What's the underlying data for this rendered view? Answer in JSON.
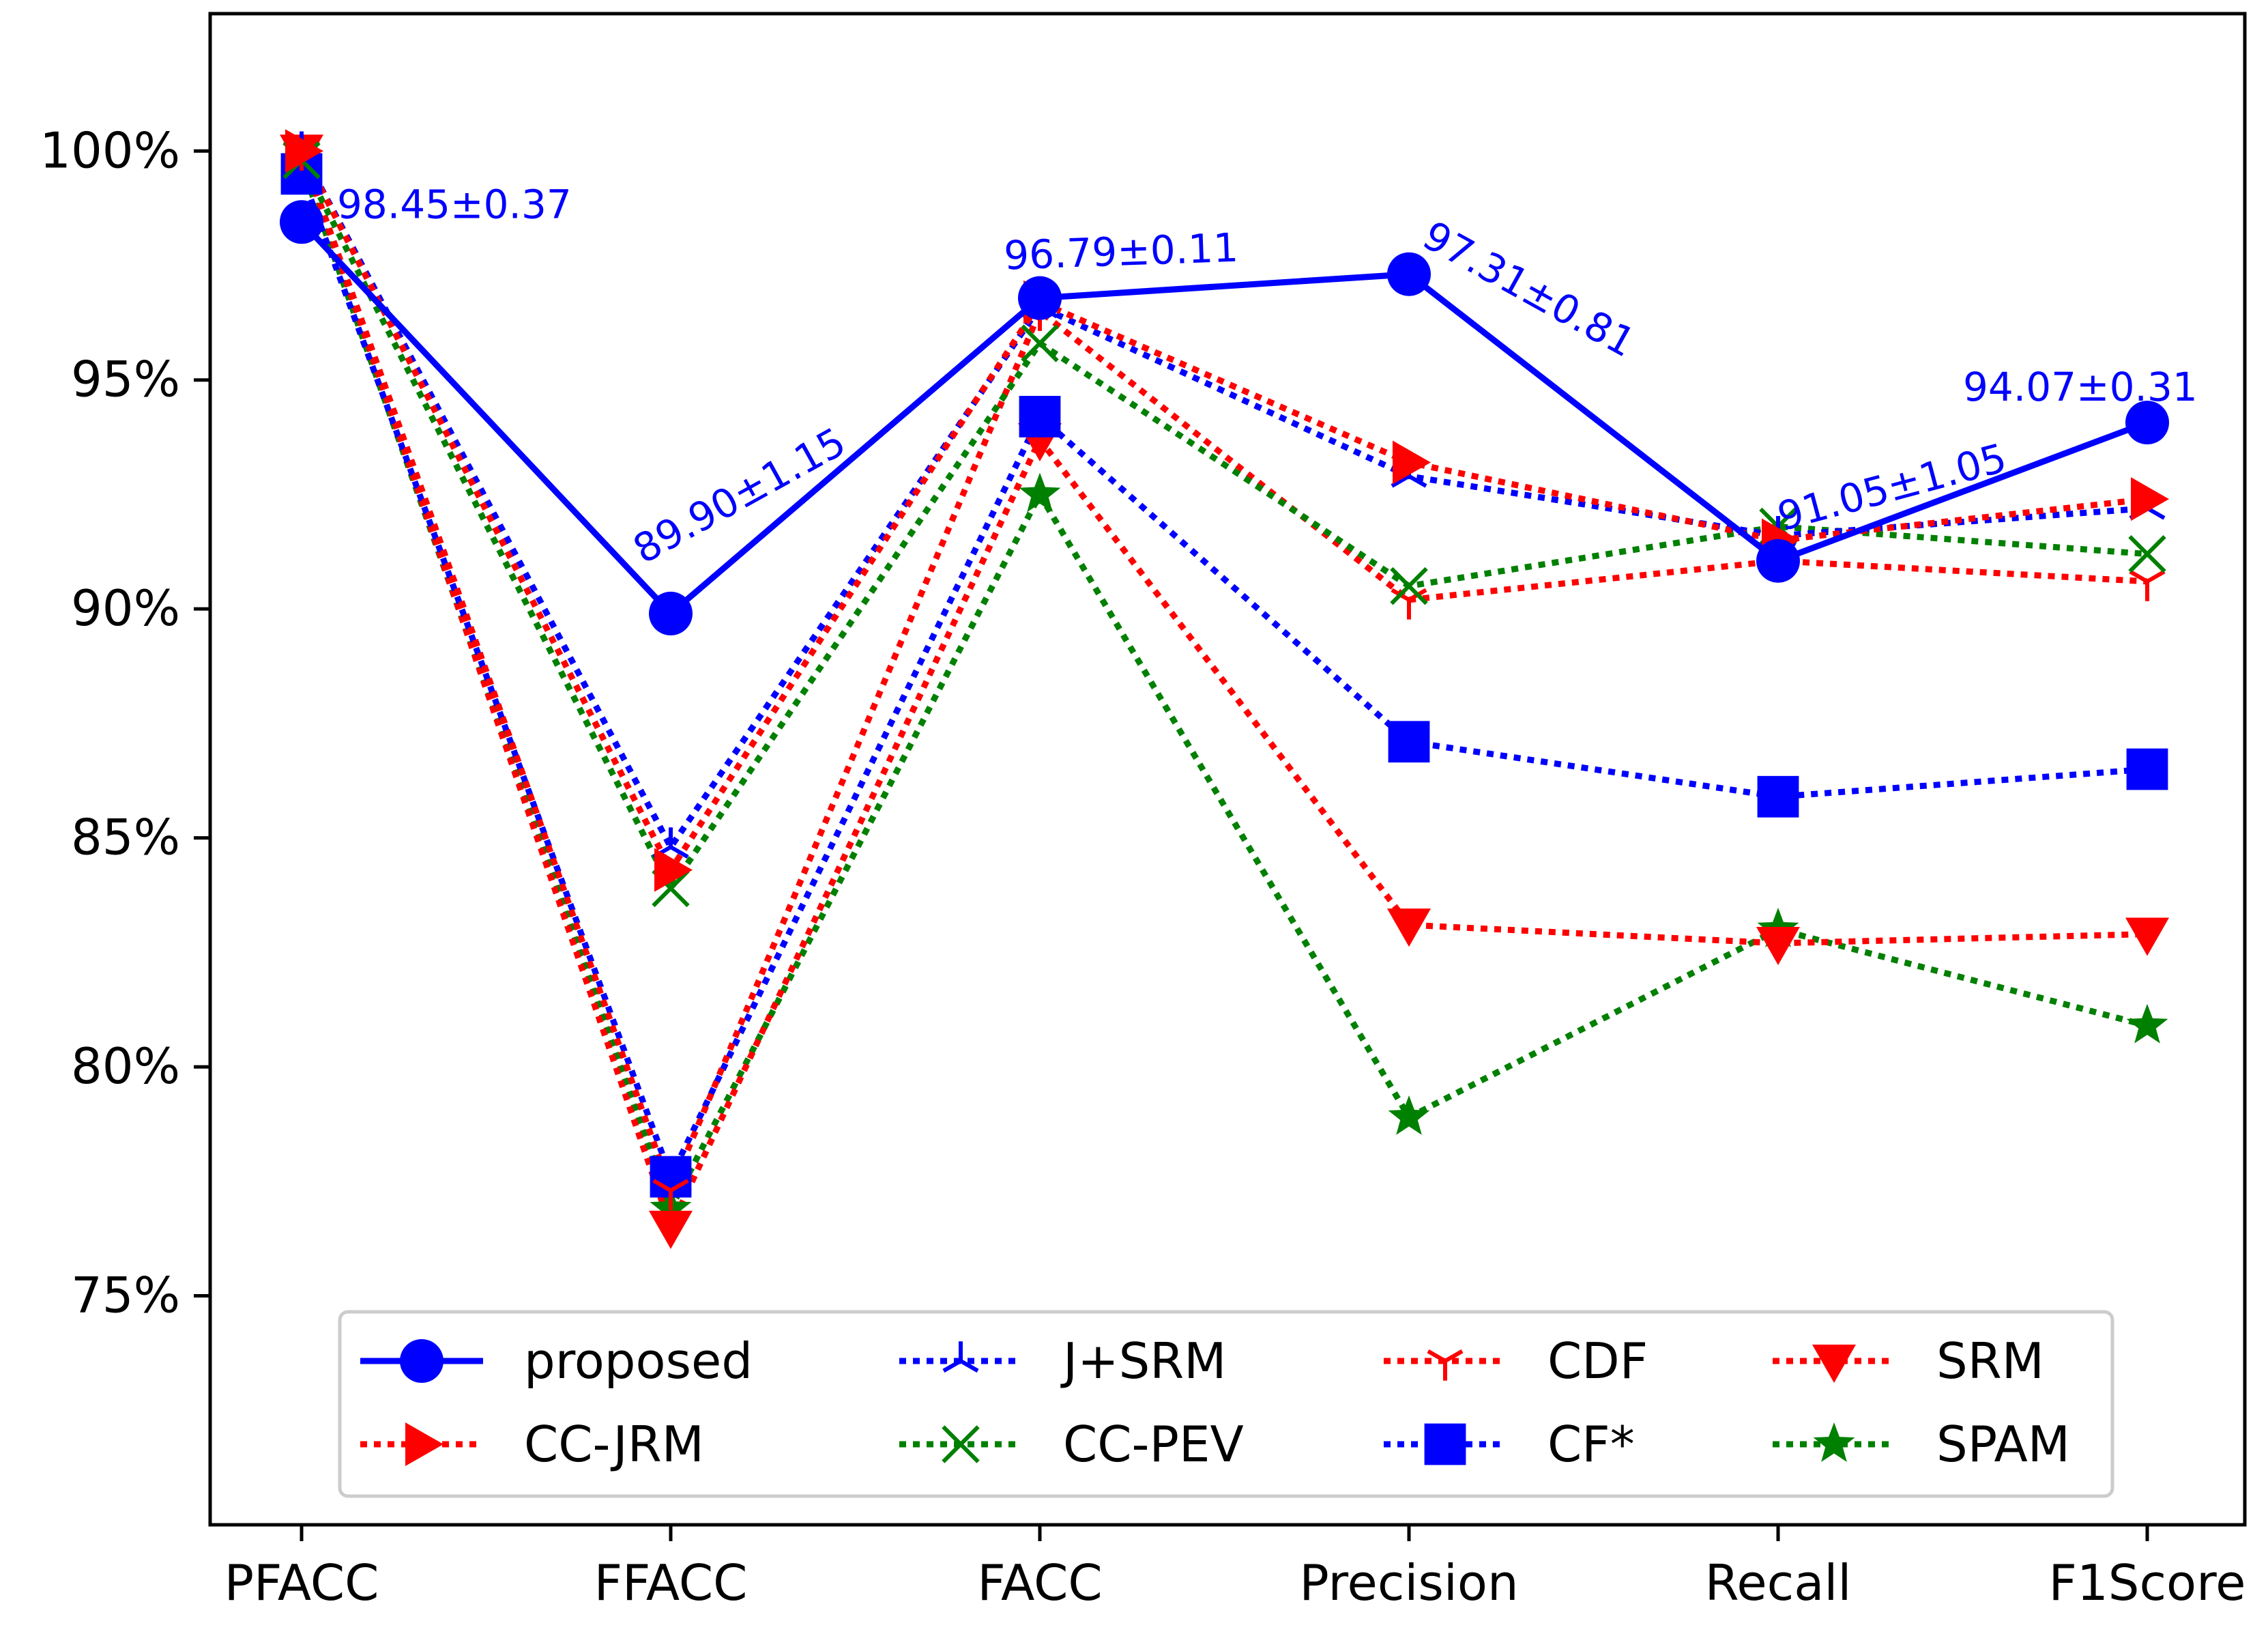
{
  "chart_data": {
    "type": "line",
    "title": "",
    "xlabel": "",
    "ylabel": "",
    "categories": [
      "PFACC",
      "FFACC",
      "FACC",
      "Precision",
      "Recall",
      "F1Score"
    ],
    "ylim": [
      70,
      103
    ],
    "yticks": [
      75,
      80,
      85,
      90,
      95,
      100
    ],
    "ytick_labels": [
      "75%",
      "80%",
      "85%",
      "90%",
      "95%",
      "100%"
    ],
    "grid": false,
    "legend_position": "bottom",
    "series": [
      {
        "name": "proposed",
        "values": [
          98.45,
          89.9,
          96.79,
          97.31,
          91.05,
          94.07
        ],
        "color": "#0000ff",
        "marker": "circle",
        "style": "solid"
      },
      {
        "name": "CC-JRM",
        "values": [
          100.0,
          84.3,
          96.7,
          93.2,
          91.5,
          92.4
        ],
        "color": "#ff0000",
        "marker": "triangle-right",
        "style": "dotted"
      },
      {
        "name": "J+SRM",
        "values": [
          100.0,
          84.8,
          96.6,
          92.9,
          91.6,
          92.2
        ],
        "color": "#0000ff",
        "marker": "tri-down",
        "style": "dotted"
      },
      {
        "name": "CC-PEV",
        "values": [
          99.8,
          83.9,
          95.8,
          90.5,
          91.8,
          91.2
        ],
        "color": "#008000",
        "marker": "x",
        "style": "dotted"
      },
      {
        "name": "CDF",
        "values": [
          100.0,
          77.3,
          96.5,
          90.2,
          91.05,
          90.6
        ],
        "color": "#ff0000",
        "marker": "tri-up",
        "style": "dotted"
      },
      {
        "name": "CF*",
        "values": [
          99.5,
          77.6,
          94.2,
          87.1,
          85.9,
          86.5
        ],
        "color": "#0000ff",
        "marker": "square",
        "style": "dotted"
      },
      {
        "name": "SRM",
        "values": [
          100.0,
          76.5,
          93.7,
          83.1,
          82.7,
          82.9
        ],
        "color": "#ff0000",
        "marker": "triangle-down",
        "style": "dotted"
      },
      {
        "name": "SPAM",
        "values": [
          99.7,
          76.9,
          92.5,
          78.9,
          83.0,
          80.9
        ],
        "color": "#008000",
        "marker": "star",
        "style": "dotted"
      }
    ],
    "annotations": [
      {
        "text": "98.45±0.37",
        "category": "PFACC",
        "value": 98.45,
        "color": "#0000ff"
      },
      {
        "text": "89.90±1.15",
        "category": "FFACC",
        "value": 89.9,
        "color": "#0000ff"
      },
      {
        "text": "96.79±0.11",
        "category": "FACC",
        "value": 96.79,
        "color": "#0000ff"
      },
      {
        "text": "97.31±0.81",
        "category": "Precision",
        "value": 97.31,
        "color": "#0000ff"
      },
      {
        "text": "91.05±1.05",
        "category": "Recall",
        "value": 91.05,
        "color": "#0000ff"
      },
      {
        "text": "94.07±0.31",
        "category": "F1Score",
        "value": 94.07,
        "color": "#0000ff"
      }
    ]
  }
}
